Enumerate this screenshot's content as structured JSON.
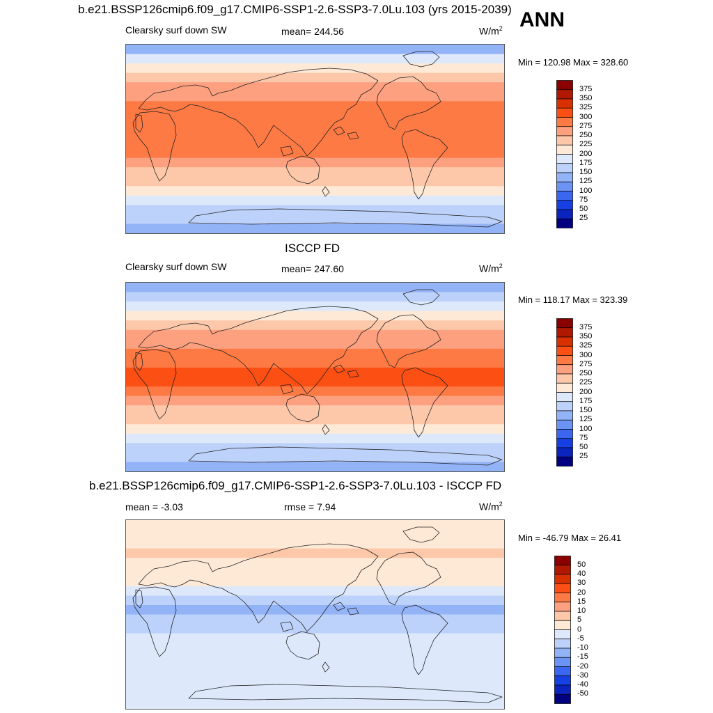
{
  "season_label": "ANN",
  "chart_data": [
    {
      "type": "heatmap",
      "title": "b.e21.BSSP126cmip6.f09_g17.CMIP6-SSP1-2.6-SSP3-7.0Lu.103 (yrs 2015-2039)",
      "left_label": "Clearsky surf down SW",
      "center_label": "mean= 244.56",
      "units_base": "W/m",
      "units_exp": "2",
      "minmax": "Min = 120.98 Max = 328.60",
      "colorbar": {
        "levels": [
          "375",
          "350",
          "325",
          "300",
          "275",
          "250",
          "225",
          "200",
          "175",
          "150",
          "125",
          "100",
          "75",
          "50",
          "25"
        ],
        "colors": [
          "#8b0000",
          "#b01800",
          "#d93000",
          "#fb4f14",
          "#fd7a44",
          "#fca07f",
          "#fdc8a9",
          "#fee9d6",
          "#dde9fb",
          "#bdd2fa",
          "#93b3f7",
          "#6b93f4",
          "#3b66f0",
          "#1740e4",
          "#0a24bd",
          "#000080"
        ]
      },
      "band_levels": [
        140,
        180,
        205,
        230,
        250,
        262,
        275,
        282,
        292,
        298,
        292,
        275,
        260,
        245,
        230,
        212,
        190,
        170,
        150,
        135
      ]
    },
    {
      "type": "heatmap",
      "title": "ISCCP FD",
      "left_label": "Clearsky surf down SW",
      "center_label": "mean= 247.60",
      "units_base": "W/m",
      "units_exp": "2",
      "minmax": "Min = 118.17 Max = 323.39",
      "colorbar": {
        "levels": [
          "375",
          "350",
          "325",
          "300",
          "275",
          "250",
          "225",
          "200",
          "175",
          "150",
          "125",
          "100",
          "75",
          "50",
          "25"
        ],
        "colors": [
          "#8b0000",
          "#b01800",
          "#d93000",
          "#fb4f14",
          "#fd7a44",
          "#fca07f",
          "#fdc8a9",
          "#fee9d6",
          "#dde9fb",
          "#bdd2fa",
          "#93b3f7",
          "#6b93f4",
          "#3b66f0",
          "#1740e4",
          "#0a24bd",
          "#000080"
        ]
      },
      "band_levels": [
        135,
        172,
        198,
        222,
        240,
        258,
        272,
        285,
        298,
        305,
        300,
        282,
        262,
        248,
        232,
        214,
        192,
        172,
        152,
        138
      ]
    },
    {
      "type": "heatmap",
      "title": "b.e21.BSSP126cmip6.f09_g17.CMIP6-SSP1-2.6-SSP3-7.0Lu.103 - ISCCP FD",
      "left_label": "mean =  -3.03",
      "center_label": "rmse =   7.94",
      "units_base": "W/m",
      "units_exp": "2",
      "minmax": "Min = -46.79 Max =  26.41",
      "colorbar": {
        "levels": [
          "50",
          "40",
          "30",
          "20",
          "15",
          "10",
          "5",
          "0",
          "-5",
          "-10",
          "-15",
          "-20",
          "-30",
          "-40",
          "-50"
        ],
        "colors": [
          "#8b0000",
          "#b01800",
          "#d93000",
          "#fb4f14",
          "#fd7a44",
          "#fca07f",
          "#fdc8a9",
          "#fee9d6",
          "#dde9fb",
          "#bdd2fa",
          "#93b3f7",
          "#6b93f4",
          "#3b66f0",
          "#1740e4",
          "#0a24bd",
          "#000080"
        ]
      },
      "band_levels": [
        2,
        3,
        4,
        6,
        4,
        2,
        0,
        -3,
        -8,
        -12,
        -10,
        -6,
        -4,
        -2,
        -4,
        -5,
        -5,
        -4,
        -3,
        -2
      ]
    }
  ]
}
